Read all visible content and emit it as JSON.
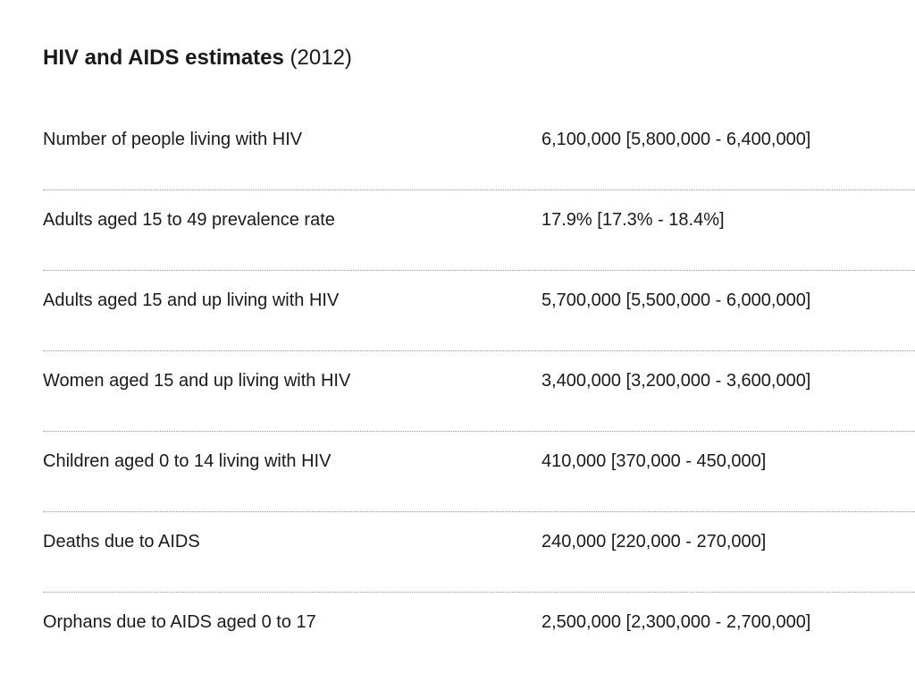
{
  "title": {
    "main": "HIV and AIDS estimates",
    "year": "(2012)"
  },
  "rows": [
    {
      "label": "Number of people living with HIV",
      "value": "6,100,000 [5,800,000 - 6,400,000]"
    },
    {
      "label": "Adults aged 15 to 49 prevalence rate",
      "value": "17.9% [17.3% - 18.4%]"
    },
    {
      "label": "Adults aged 15 and up living with HIV",
      "value": "5,700,000 [5,500,000 - 6,000,000]"
    },
    {
      "label": "Women aged 15 and up living with HIV",
      "value": "3,400,000 [3,200,000 - 3,600,000]"
    },
    {
      "label": "Children aged 0 to 14 living with HIV",
      "value": "410,000 [370,000 - 450,000]"
    },
    {
      "label": "Deaths due to AIDS",
      "value": "240,000 [220,000 - 270,000]"
    },
    {
      "label": "Orphans due to AIDS aged 0 to 17",
      "value": "2,500,000 [2,300,000 - 2,700,000]"
    }
  ]
}
